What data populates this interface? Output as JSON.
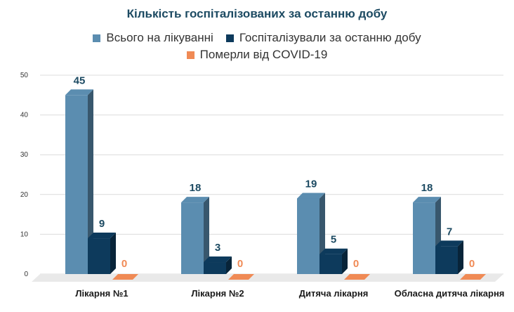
{
  "chart_data": {
    "type": "bar",
    "title": "Кількість госпіталізованих за останню добу",
    "categories": [
      "Лікарня №1",
      "Лікарня №2",
      "Дитяча лікарня",
      "Обласна дитяча лікарня"
    ],
    "series": [
      {
        "name": "Всього на лікуванні",
        "values": [
          45,
          18,
          19,
          18
        ],
        "color": "#5b8db0",
        "label_color": "#1c4a62"
      },
      {
        "name": "Госпіталізували за останню добу",
        "values": [
          9,
          3,
          5,
          7
        ],
        "color": "#0d3a5c",
        "label_color": "#1c4a62"
      },
      {
        "name": "Померли від COVID-19",
        "values": [
          0,
          0,
          0,
          0
        ],
        "color": "#f08a55",
        "label_color": "#f08a55"
      }
    ],
    "yticks": [
      "0",
      "10",
      "20",
      "30",
      "40",
      "50"
    ],
    "ylim": [
      0,
      50
    ],
    "xlabel": "",
    "ylabel": "",
    "legend_position": "top"
  }
}
